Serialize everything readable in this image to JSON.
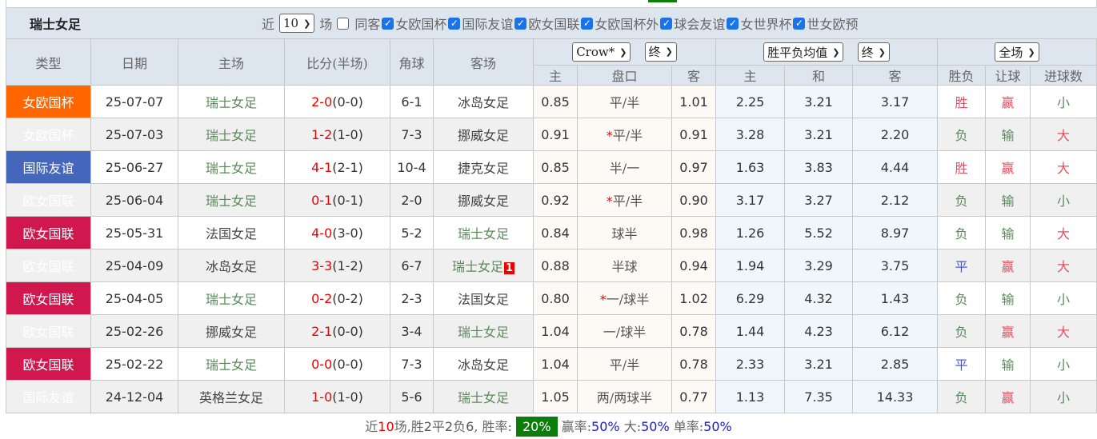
{
  "header": {
    "title": "瑞士女足",
    "recent_label": "近",
    "recent_count": "10",
    "games_label": "场",
    "same_away_label": "同客",
    "same_away_checked": false,
    "competitions": [
      {
        "label": "女欧国杯",
        "checked": true
      },
      {
        "label": "国际友谊",
        "checked": true
      },
      {
        "label": "欧女国联",
        "checked": true
      },
      {
        "label": "女欧国杯外",
        "checked": true
      },
      {
        "label": "球会友谊",
        "checked": true
      },
      {
        "label": "女世界杯",
        "checked": true
      },
      {
        "label": "世女欧预",
        "checked": true
      }
    ]
  },
  "columns": {
    "type": "类型",
    "date": "日期",
    "home": "主场",
    "score": "比分(半场)",
    "corner": "角球",
    "away": "客场",
    "asian_company": "Crow*",
    "asian_stage": "终",
    "euro_type": "胜平负均值",
    "euro_stage": "终",
    "scope": "全场",
    "asian_sub": [
      "主",
      "盘口",
      "客"
    ],
    "euro_sub": [
      "主",
      "和",
      "客"
    ],
    "result_sub": [
      "胜负",
      "让球",
      "进球数"
    ]
  },
  "colors": {
    "女欧国杯": "#ff6600",
    "国际友谊": "#4466bb",
    "欧女国联": "#d0174e"
  },
  "rows": [
    {
      "type": "女欧国杯",
      "date": "25-07-07",
      "home": "瑞士女足",
      "ft": "2-0",
      "ht": "(0-0)",
      "corner": "6-1",
      "away": "冰岛女足",
      "a_home": "0.85",
      "star": "",
      "line": "平/半",
      "a_away": "1.01",
      "e_home": "2.25",
      "e_draw": "3.21",
      "e_away": "3.17",
      "wl": "胜",
      "hc": "赢",
      "ou": "小",
      "red_card": ""
    },
    {
      "type": "女欧国杯",
      "date": "25-07-03",
      "home": "瑞士女足",
      "ft": "1-2",
      "ht": "(1-0)",
      "corner": "7-3",
      "away": "挪威女足",
      "a_home": "0.91",
      "star": "*",
      "line": "平/半",
      "a_away": "0.91",
      "e_home": "3.28",
      "e_draw": "3.21",
      "e_away": "2.20",
      "wl": "负",
      "hc": "输",
      "ou": "大",
      "red_card": ""
    },
    {
      "type": "国际友谊",
      "date": "25-06-27",
      "home": "瑞士女足",
      "ft": "4-1",
      "ht": "(2-1)",
      "corner": "10-4",
      "away": "捷克女足",
      "a_home": "0.85",
      "star": "",
      "line": "半/一",
      "a_away": "0.97",
      "e_home": "1.63",
      "e_draw": "3.83",
      "e_away": "4.44",
      "wl": "胜",
      "hc": "赢",
      "ou": "大",
      "red_card": ""
    },
    {
      "type": "欧女国联",
      "date": "25-06-04",
      "home": "瑞士女足",
      "ft": "0-1",
      "ht": "(0-1)",
      "corner": "2-0",
      "away": "挪威女足",
      "a_home": "0.92",
      "star": "*",
      "line": "平/半",
      "a_away": "0.90",
      "e_home": "3.17",
      "e_draw": "3.27",
      "e_away": "2.12",
      "wl": "负",
      "hc": "输",
      "ou": "小",
      "red_card": ""
    },
    {
      "type": "欧女国联",
      "date": "25-05-31",
      "home": "法国女足",
      "ft": "4-0",
      "ht": "(3-0)",
      "corner": "5-2",
      "away": "瑞士女足",
      "a_home": "0.84",
      "star": "",
      "line": "球半",
      "a_away": "0.98",
      "e_home": "1.26",
      "e_draw": "5.52",
      "e_away": "8.97",
      "wl": "负",
      "hc": "输",
      "ou": "大",
      "red_card": ""
    },
    {
      "type": "欧女国联",
      "date": "25-04-09",
      "home": "冰岛女足",
      "ft": "3-3",
      "ht": "(1-2)",
      "corner": "6-7",
      "away": "瑞士女足",
      "a_home": "0.88",
      "star": "",
      "line": "半球",
      "a_away": "0.94",
      "e_home": "1.94",
      "e_draw": "3.29",
      "e_away": "3.75",
      "wl": "平",
      "hc": "赢",
      "ou": "大",
      "red_card": "1"
    },
    {
      "type": "欧女国联",
      "date": "25-04-05",
      "home": "瑞士女足",
      "ft": "0-2",
      "ht": "(0-2)",
      "corner": "2-3",
      "away": "法国女足",
      "a_home": "0.80",
      "star": "*",
      "line": "一/球半",
      "a_away": "1.02",
      "e_home": "6.29",
      "e_draw": "4.32",
      "e_away": "1.43",
      "wl": "负",
      "hc": "输",
      "ou": "小",
      "red_card": ""
    },
    {
      "type": "欧女国联",
      "date": "25-02-26",
      "home": "挪威女足",
      "ft": "2-1",
      "ht": "(0-0)",
      "corner": "3-4",
      "away": "瑞士女足",
      "a_home": "1.04",
      "star": "",
      "line": "一/球半",
      "a_away": "0.78",
      "e_home": "1.44",
      "e_draw": "4.23",
      "e_away": "6.12",
      "wl": "负",
      "hc": "赢",
      "ou": "大",
      "red_card": ""
    },
    {
      "type": "欧女国联",
      "date": "25-02-22",
      "home": "瑞士女足",
      "ft": "0-0",
      "ht": "(0-0)",
      "corner": "7-3",
      "away": "冰岛女足",
      "a_home": "1.04",
      "star": "",
      "line": "平/半",
      "a_away": "0.78",
      "e_home": "2.33",
      "e_draw": "3.21",
      "e_away": "2.85",
      "wl": "平",
      "hc": "输",
      "ou": "小",
      "red_card": ""
    },
    {
      "type": "国际友谊",
      "date": "24-12-04",
      "home": "英格兰女足",
      "ft": "1-0",
      "ht": "(1-0)",
      "corner": "5-6",
      "away": "瑞士女足",
      "a_home": "1.05",
      "star": "",
      "line": "两/两球半",
      "a_away": "0.77",
      "e_home": "1.13",
      "e_draw": "7.35",
      "e_away": "14.33",
      "wl": "负",
      "hc": "赢",
      "ou": "小",
      "red_card": ""
    }
  ],
  "summary": {
    "p1": "近",
    "games": "10",
    "p2": "场,胜",
    "wins": "2",
    "p3": "平",
    "draws": "2",
    "p4": "负",
    "losses": "6",
    "p5": ", 胜率:",
    "win_rate": "20%",
    "p6": "赢率:",
    "hc_rate": "50%",
    "p7": "大:",
    "over_rate": "50%",
    "p8": "单率:",
    "odd_rate": "50%"
  }
}
